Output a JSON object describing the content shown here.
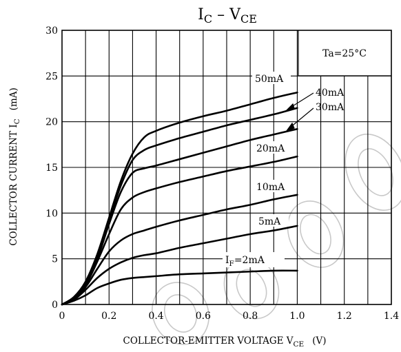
{
  "chart_data": {
    "type": "line",
    "title": {
      "main": "I",
      "sub1": "C",
      "dash": " – V",
      "sub2": "CE"
    },
    "xlabel": {
      "main": "COLLECTOR-EMITTER VOLTAGE  V",
      "sub": "CE",
      "unit": "(V)"
    },
    "ylabel": {
      "main": "COLLECTOR CURRENT  I",
      "sub": "C",
      "unit": "(mA)"
    },
    "xlim": [
      0,
      1.4
    ],
    "ylim": [
      0,
      30
    ],
    "x_ticks": [
      0,
      0.2,
      0.4,
      0.6,
      0.8,
      1.0,
      1.2,
      1.4
    ],
    "x_tick_labels": [
      "0",
      "0.2",
      "0.4",
      "0.6",
      "0.8",
      "1.0",
      "1.2",
      "1.4"
    ],
    "y_ticks": [
      0,
      5,
      10,
      15,
      20,
      25,
      30
    ],
    "y_tick_labels": [
      "0",
      "5",
      "10",
      "15",
      "20",
      "25",
      "30"
    ],
    "grid": true,
    "annotation": "Ta=25°C",
    "series": [
      {
        "name": "50mA",
        "x": [
          0,
          0.05,
          0.1,
          0.15,
          0.2,
          0.25,
          0.3,
          0.35,
          0.4,
          0.5,
          0.6,
          0.7,
          0.8,
          0.9,
          1.0
        ],
        "y": [
          0,
          0.8,
          2.5,
          5.5,
          9.5,
          13.5,
          16.5,
          18.3,
          19.0,
          19.9,
          20.6,
          21.2,
          21.9,
          22.6,
          23.2
        ]
      },
      {
        "name": "40mA",
        "x": [
          0,
          0.05,
          0.1,
          0.15,
          0.2,
          0.25,
          0.3,
          0.35,
          0.4,
          0.5,
          0.6,
          0.7,
          0.8,
          0.9,
          1.0
        ],
        "y": [
          0,
          0.8,
          2.4,
          5.3,
          9.2,
          13.0,
          15.8,
          16.9,
          17.4,
          18.2,
          18.9,
          19.6,
          20.2,
          20.8,
          21.5
        ]
      },
      {
        "name": "30mA",
        "x": [
          0,
          0.05,
          0.1,
          0.15,
          0.2,
          0.25,
          0.3,
          0.35,
          0.4,
          0.5,
          0.6,
          0.7,
          0.8,
          0.9,
          1.0
        ],
        "y": [
          0,
          0.7,
          2.3,
          5.0,
          8.8,
          12.3,
          14.4,
          14.9,
          15.2,
          15.9,
          16.6,
          17.3,
          18.0,
          18.6,
          19.2
        ]
      },
      {
        "name": "20mA",
        "x": [
          0,
          0.05,
          0.1,
          0.15,
          0.2,
          0.25,
          0.3,
          0.35,
          0.4,
          0.5,
          0.6,
          0.7,
          0.8,
          0.9,
          1.0
        ],
        "y": [
          0,
          0.7,
          2.1,
          4.7,
          7.7,
          10.4,
          11.7,
          12.3,
          12.7,
          13.4,
          14.0,
          14.6,
          15.1,
          15.6,
          16.2
        ]
      },
      {
        "name": "10mA",
        "x": [
          0,
          0.05,
          0.1,
          0.15,
          0.2,
          0.25,
          0.3,
          0.35,
          0.4,
          0.5,
          0.6,
          0.7,
          0.8,
          0.9,
          1.0
        ],
        "y": [
          0,
          0.6,
          1.9,
          3.9,
          5.8,
          7.0,
          7.7,
          8.1,
          8.5,
          9.2,
          9.8,
          10.4,
          10.9,
          11.5,
          12.0
        ]
      },
      {
        "name": "5mA",
        "x": [
          0,
          0.05,
          0.1,
          0.15,
          0.2,
          0.25,
          0.3,
          0.35,
          0.4,
          0.5,
          0.6,
          0.7,
          0.8,
          0.9,
          1.0
        ],
        "y": [
          0,
          0.5,
          1.6,
          2.9,
          3.9,
          4.6,
          5.1,
          5.4,
          5.6,
          6.2,
          6.7,
          7.2,
          7.7,
          8.1,
          8.6
        ]
      },
      {
        "name": "IF=2mA",
        "x": [
          0,
          0.05,
          0.1,
          0.15,
          0.2,
          0.25,
          0.3,
          0.35,
          0.4,
          0.5,
          0.6,
          0.7,
          0.8,
          0.9,
          1.0
        ],
        "y": [
          0,
          0.4,
          1.0,
          1.8,
          2.3,
          2.7,
          2.9,
          3.0,
          3.1,
          3.3,
          3.4,
          3.5,
          3.6,
          3.7,
          3.7
        ]
      }
    ],
    "series_labels": [
      {
        "text": "50mA"
      },
      {
        "text": "40mA"
      },
      {
        "text": "30mA"
      },
      {
        "text": "20mA"
      },
      {
        "text": "10mA"
      },
      {
        "text": "5mA"
      },
      {
        "main": "I",
        "sub": "F",
        "rest": "=2mA"
      }
    ],
    "colors": {
      "line": "#000000",
      "background": "#ffffff",
      "watermark": "#c8c8c8"
    }
  }
}
